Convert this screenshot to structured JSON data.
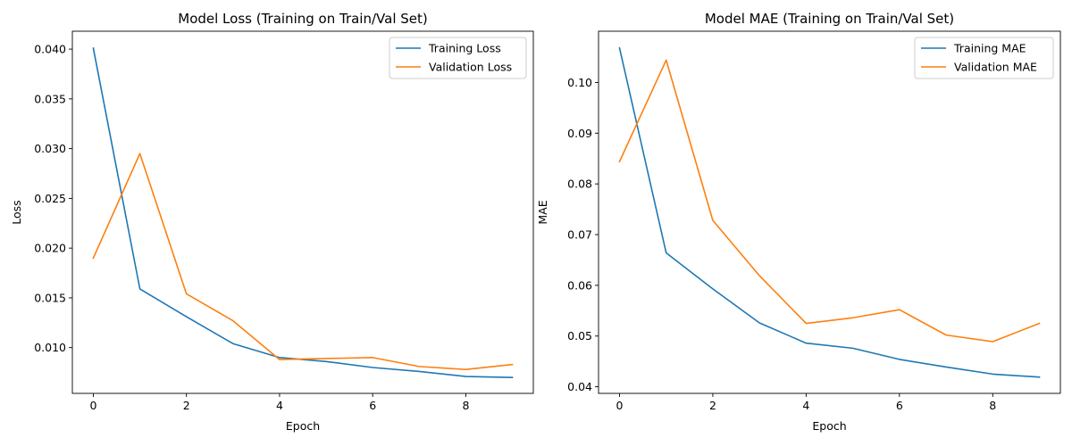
{
  "chart_data": [
    {
      "type": "line",
      "title": "Model Loss (Training on Train/Val Set)",
      "xlabel": "Epoch",
      "ylabel": "Loss",
      "x": [
        0,
        1,
        2,
        3,
        4,
        5,
        6,
        7,
        8,
        9
      ],
      "xlim": [
        -0.45,
        9.45
      ],
      "ylim": [
        0.0054,
        0.0418
      ],
      "xticks": [
        0,
        2,
        4,
        6,
        8
      ],
      "xtick_labels": [
        "0",
        "2",
        "4",
        "6",
        "8"
      ],
      "yticks": [
        0.01,
        0.015,
        0.02,
        0.025,
        0.03,
        0.035,
        0.04
      ],
      "ytick_labels": [
        "0.010",
        "0.015",
        "0.020",
        "0.025",
        "0.030",
        "0.035",
        "0.040"
      ],
      "grid": false,
      "legend_position": "top-right",
      "series": [
        {
          "name": "Training Loss",
          "color": "#1f77b4",
          "values": [
            0.0401,
            0.0159,
            0.0131,
            0.0104,
            0.009,
            0.0086,
            0.008,
            0.0076,
            0.0071,
            0.007
          ]
        },
        {
          "name": "Validation Loss",
          "color": "#ff7f0e",
          "values": [
            0.019,
            0.0295,
            0.0154,
            0.0127,
            0.0088,
            0.0089,
            0.009,
            0.0081,
            0.0078,
            0.0083
          ]
        }
      ]
    },
    {
      "type": "line",
      "title": "Model MAE (Training on Train/Val Set)",
      "xlabel": "Epoch",
      "ylabel": "MAE",
      "x": [
        0,
        1,
        2,
        3,
        4,
        5,
        6,
        7,
        8,
        9
      ],
      "xlim": [
        -0.45,
        9.45
      ],
      "ylim": [
        0.0387,
        0.1101
      ],
      "xticks": [
        0,
        2,
        4,
        6,
        8
      ],
      "xtick_labels": [
        "0",
        "2",
        "4",
        "6",
        "8"
      ],
      "yticks": [
        0.04,
        0.05,
        0.06,
        0.07,
        0.08,
        0.09,
        0.1
      ],
      "ytick_labels": [
        "0.04",
        "0.05",
        "0.06",
        "0.07",
        "0.08",
        "0.09",
        "0.10"
      ],
      "grid": false,
      "legend_position": "top-right",
      "series": [
        {
          "name": "Training MAE",
          "color": "#1f77b4",
          "values": [
            0.1068,
            0.0664,
            0.0593,
            0.0526,
            0.0486,
            0.0476,
            0.0454,
            0.0439,
            0.0425,
            0.0419
          ]
        },
        {
          "name": "Validation MAE",
          "color": "#ff7f0e",
          "values": [
            0.0844,
            0.1044,
            0.0728,
            0.0619,
            0.0525,
            0.0536,
            0.0552,
            0.0502,
            0.0489,
            0.0525
          ]
        }
      ]
    }
  ]
}
